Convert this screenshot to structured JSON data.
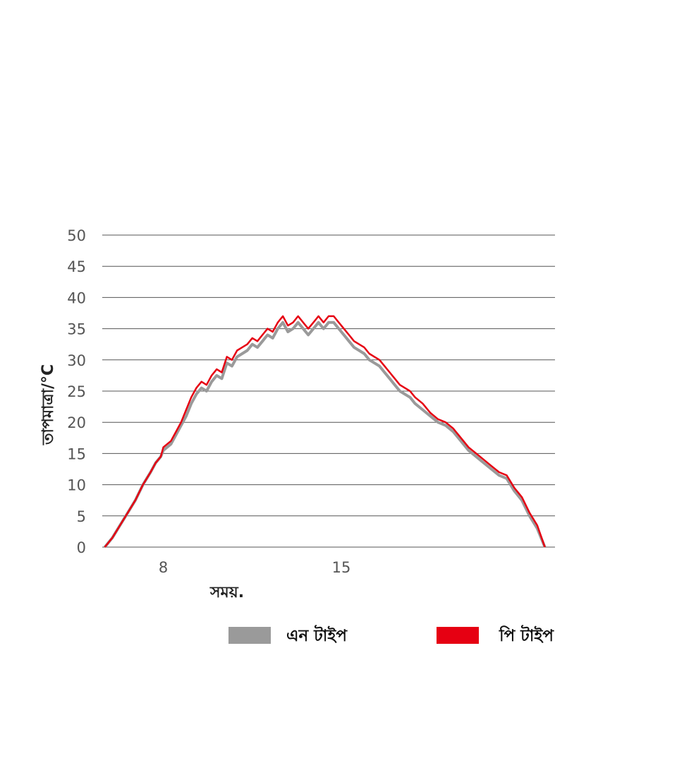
{
  "chart_data": {
    "type": "line",
    "title": "",
    "xlabel": "সময়.",
    "ylabel": "তাপমাত্রা/°C",
    "ylim": [
      0,
      50
    ],
    "yticks": [
      0,
      5,
      10,
      15,
      20,
      25,
      30,
      35,
      40,
      45,
      50
    ],
    "xlim": [
      5.6,
      23.4
    ],
    "xticks": [
      {
        "value": 8,
        "label": "8"
      },
      {
        "value": 15,
        "label": "15"
      }
    ],
    "grid": true,
    "legend_position": "bottom",
    "colors": {
      "n_type": "#9a9a9a",
      "p_type": "#e60012",
      "grid": "#555555"
    },
    "series": [
      {
        "name": "এন টাইপ",
        "color": "#9a9a9a",
        "x": [
          5.7,
          6.0,
          6.3,
          6.6,
          6.9,
          7.2,
          7.5,
          7.7,
          7.9,
          8.0,
          8.3,
          8.5,
          8.7,
          8.9,
          9.1,
          9.3,
          9.5,
          9.7,
          9.9,
          10.1,
          10.3,
          10.5,
          10.7,
          10.9,
          11.1,
          11.3,
          11.5,
          11.7,
          11.9,
          12.1,
          12.3,
          12.5,
          12.7,
          12.9,
          13.1,
          13.3,
          13.5,
          13.7,
          13.9,
          14.1,
          14.3,
          14.5,
          14.7,
          14.9,
          15.1,
          15.3,
          15.5,
          15.7,
          15.9,
          16.1,
          16.3,
          16.5,
          16.7,
          16.9,
          17.1,
          17.3,
          17.5,
          17.7,
          17.9,
          18.2,
          18.5,
          18.8,
          19.1,
          19.4,
          19.7,
          20.0,
          20.3,
          20.6,
          20.9,
          21.2,
          21.5,
          21.8,
          22.1,
          22.4,
          22.7,
          23.0
        ],
        "values": [
          0,
          1.5,
          3.5,
          5.5,
          7.5,
          10,
          12,
          13.5,
          14.5,
          15.5,
          16.5,
          18,
          19.5,
          21,
          23,
          24.5,
          25.5,
          25,
          26.5,
          27.5,
          27,
          29.5,
          29,
          30.5,
          31,
          31.5,
          32.5,
          32,
          33,
          34,
          33.5,
          35,
          36,
          34.5,
          35,
          36,
          35,
          34,
          35,
          36,
          35,
          36,
          36,
          35,
          34,
          33,
          32,
          31.5,
          31,
          30,
          29.5,
          29,
          28,
          27,
          26,
          25,
          24.5,
          24,
          23,
          22,
          21,
          20,
          19.5,
          18.5,
          17,
          15.5,
          14.5,
          13.5,
          12.5,
          11.5,
          11,
          9,
          7.5,
          5,
          3,
          0
        ]
      },
      {
        "name": "পি টাইপ",
        "color": "#e60012",
        "x": [
          5.7,
          6.0,
          6.3,
          6.6,
          6.9,
          7.2,
          7.5,
          7.7,
          7.9,
          8.0,
          8.3,
          8.5,
          8.7,
          8.9,
          9.1,
          9.3,
          9.5,
          9.7,
          9.9,
          10.1,
          10.3,
          10.5,
          10.7,
          10.9,
          11.1,
          11.3,
          11.5,
          11.7,
          11.9,
          12.1,
          12.3,
          12.5,
          12.7,
          12.9,
          13.1,
          13.3,
          13.5,
          13.7,
          13.9,
          14.1,
          14.3,
          14.5,
          14.7,
          14.9,
          15.1,
          15.3,
          15.5,
          15.7,
          15.9,
          16.1,
          16.3,
          16.5,
          16.7,
          16.9,
          17.1,
          17.3,
          17.5,
          17.7,
          17.9,
          18.2,
          18.5,
          18.8,
          19.1,
          19.4,
          19.7,
          20.0,
          20.3,
          20.6,
          20.9,
          21.2,
          21.5,
          21.8,
          22.1,
          22.4,
          22.7,
          23.0
        ],
        "values": [
          0,
          1.5,
          3.5,
          5.5,
          7.5,
          10,
          12,
          13.5,
          14.5,
          16,
          17,
          18.5,
          20,
          22,
          24,
          25.5,
          26.5,
          26,
          27.5,
          28.5,
          28,
          30.5,
          30,
          31.5,
          32,
          32.5,
          33.5,
          33,
          34,
          35,
          34.5,
          36,
          37,
          35.5,
          36,
          37,
          36,
          35,
          36,
          37,
          36,
          37,
          37,
          36,
          35,
          34,
          33,
          32.5,
          32,
          31,
          30.5,
          30,
          29,
          28,
          27,
          26,
          25.5,
          25,
          24,
          23,
          21.5,
          20.5,
          20,
          19,
          17.5,
          16,
          15,
          14,
          13,
          12,
          11.5,
          9.5,
          8,
          5.5,
          3.5,
          0
        ]
      }
    ]
  }
}
